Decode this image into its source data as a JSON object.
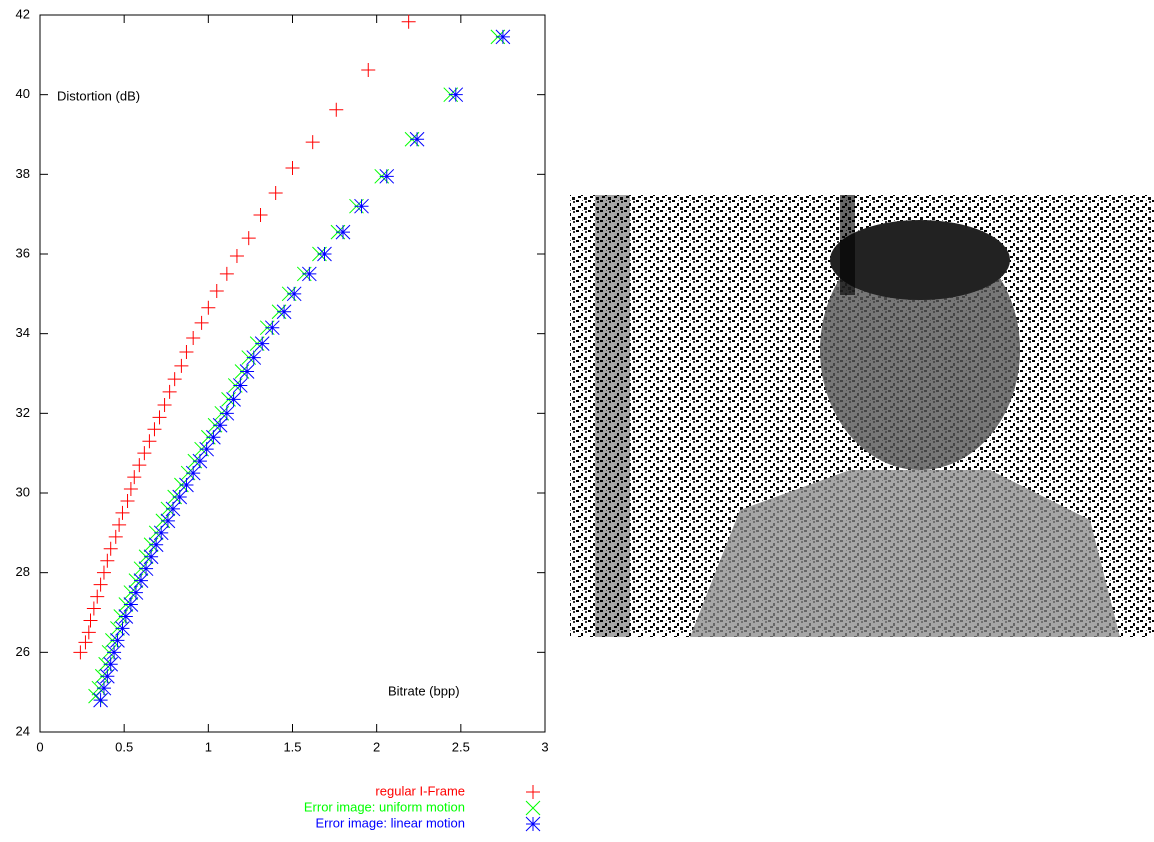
{
  "chart_data": {
    "type": "scatter",
    "ylabel": "Distortion (dB)",
    "xlabel": "Bitrate (bpp)",
    "xlim": [
      0,
      3
    ],
    "xticks": [
      0,
      0.5,
      1,
      1.5,
      2,
      2.5,
      3
    ],
    "ylim": [
      24,
      42
    ],
    "yticks": [
      24,
      26,
      28,
      30,
      32,
      34,
      36,
      38,
      40,
      42
    ],
    "grid": false,
    "legend": "bottom",
    "series": [
      {
        "name": "regular I-Frame",
        "color": "#ff0000",
        "marker": "plus",
        "x": [
          2.19,
          1.95,
          1.76,
          1.62,
          1.5,
          1.4,
          1.31,
          1.24,
          1.17,
          1.11,
          1.05,
          1.0,
          0.96,
          0.91,
          0.87,
          0.84,
          0.8,
          0.77,
          0.74,
          0.71,
          0.68,
          0.65,
          0.62,
          0.59,
          0.56,
          0.54,
          0.52,
          0.49,
          0.47,
          0.45,
          0.42,
          0.4,
          0.38,
          0.36,
          0.34,
          0.32,
          0.3,
          0.29,
          0.27,
          0.24
        ],
        "values": [
          41.83,
          40.62,
          39.62,
          38.81,
          38.16,
          37.53,
          36.98,
          36.4,
          35.95,
          35.5,
          35.07,
          34.65,
          34.27,
          33.89,
          33.54,
          33.19,
          32.86,
          32.54,
          32.21,
          31.9,
          31.6,
          31.3,
          31.0,
          30.7,
          30.4,
          30.1,
          29.8,
          29.5,
          29.2,
          28.9,
          28.6,
          28.3,
          28.0,
          27.7,
          27.4,
          27.1,
          26.8,
          26.5,
          26.25,
          26.0
        ]
      },
      {
        "name": "Error image: uniform motion",
        "color": "#00ff00",
        "marker": "cross",
        "x": [
          2.72,
          2.44,
          2.21,
          2.03,
          1.88,
          1.77,
          1.66,
          1.57,
          1.48,
          1.42,
          1.35,
          1.29,
          1.24,
          1.2,
          1.16,
          1.12,
          1.08,
          1.04,
          1.0,
          0.96,
          0.92,
          0.88,
          0.84,
          0.8,
          0.76,
          0.73,
          0.69,
          0.66,
          0.63,
          0.6,
          0.57,
          0.54,
          0.51,
          0.48,
          0.46,
          0.43,
          0.41,
          0.39,
          0.37,
          0.35,
          0.33
        ],
        "values": [
          41.45,
          40.0,
          38.88,
          37.95,
          37.2,
          36.55,
          36.0,
          35.5,
          35.0,
          34.55,
          34.15,
          33.75,
          33.4,
          33.05,
          32.7,
          32.35,
          32.0,
          31.7,
          31.4,
          31.1,
          30.8,
          30.5,
          30.2,
          29.9,
          29.6,
          29.3,
          29.0,
          28.7,
          28.4,
          28.1,
          27.8,
          27.5,
          27.2,
          26.9,
          26.6,
          26.3,
          26.0,
          25.7,
          25.4,
          25.1,
          24.9
        ]
      },
      {
        "name": "Error image: linear motion",
        "color": "#0000ff",
        "marker": "star",
        "x": [
          2.75,
          2.47,
          2.24,
          2.06,
          1.91,
          1.8,
          1.69,
          1.6,
          1.51,
          1.45,
          1.38,
          1.32,
          1.27,
          1.23,
          1.19,
          1.15,
          1.11,
          1.07,
          1.03,
          0.99,
          0.95,
          0.91,
          0.87,
          0.83,
          0.79,
          0.76,
          0.72,
          0.69,
          0.66,
          0.63,
          0.6,
          0.57,
          0.54,
          0.51,
          0.49,
          0.46,
          0.44,
          0.42,
          0.4,
          0.38,
          0.36
        ],
        "values": [
          41.45,
          40.0,
          38.88,
          37.95,
          37.2,
          36.55,
          36.0,
          35.5,
          35.0,
          34.55,
          34.15,
          33.75,
          33.4,
          33.05,
          32.7,
          32.35,
          32.0,
          31.7,
          31.4,
          31.1,
          30.8,
          30.5,
          30.2,
          29.9,
          29.6,
          29.3,
          29.0,
          28.7,
          28.4,
          28.1,
          27.8,
          27.5,
          27.2,
          26.9,
          26.6,
          26.3,
          26.0,
          25.7,
          25.4,
          25.1,
          24.8
        ]
      }
    ]
  }
}
